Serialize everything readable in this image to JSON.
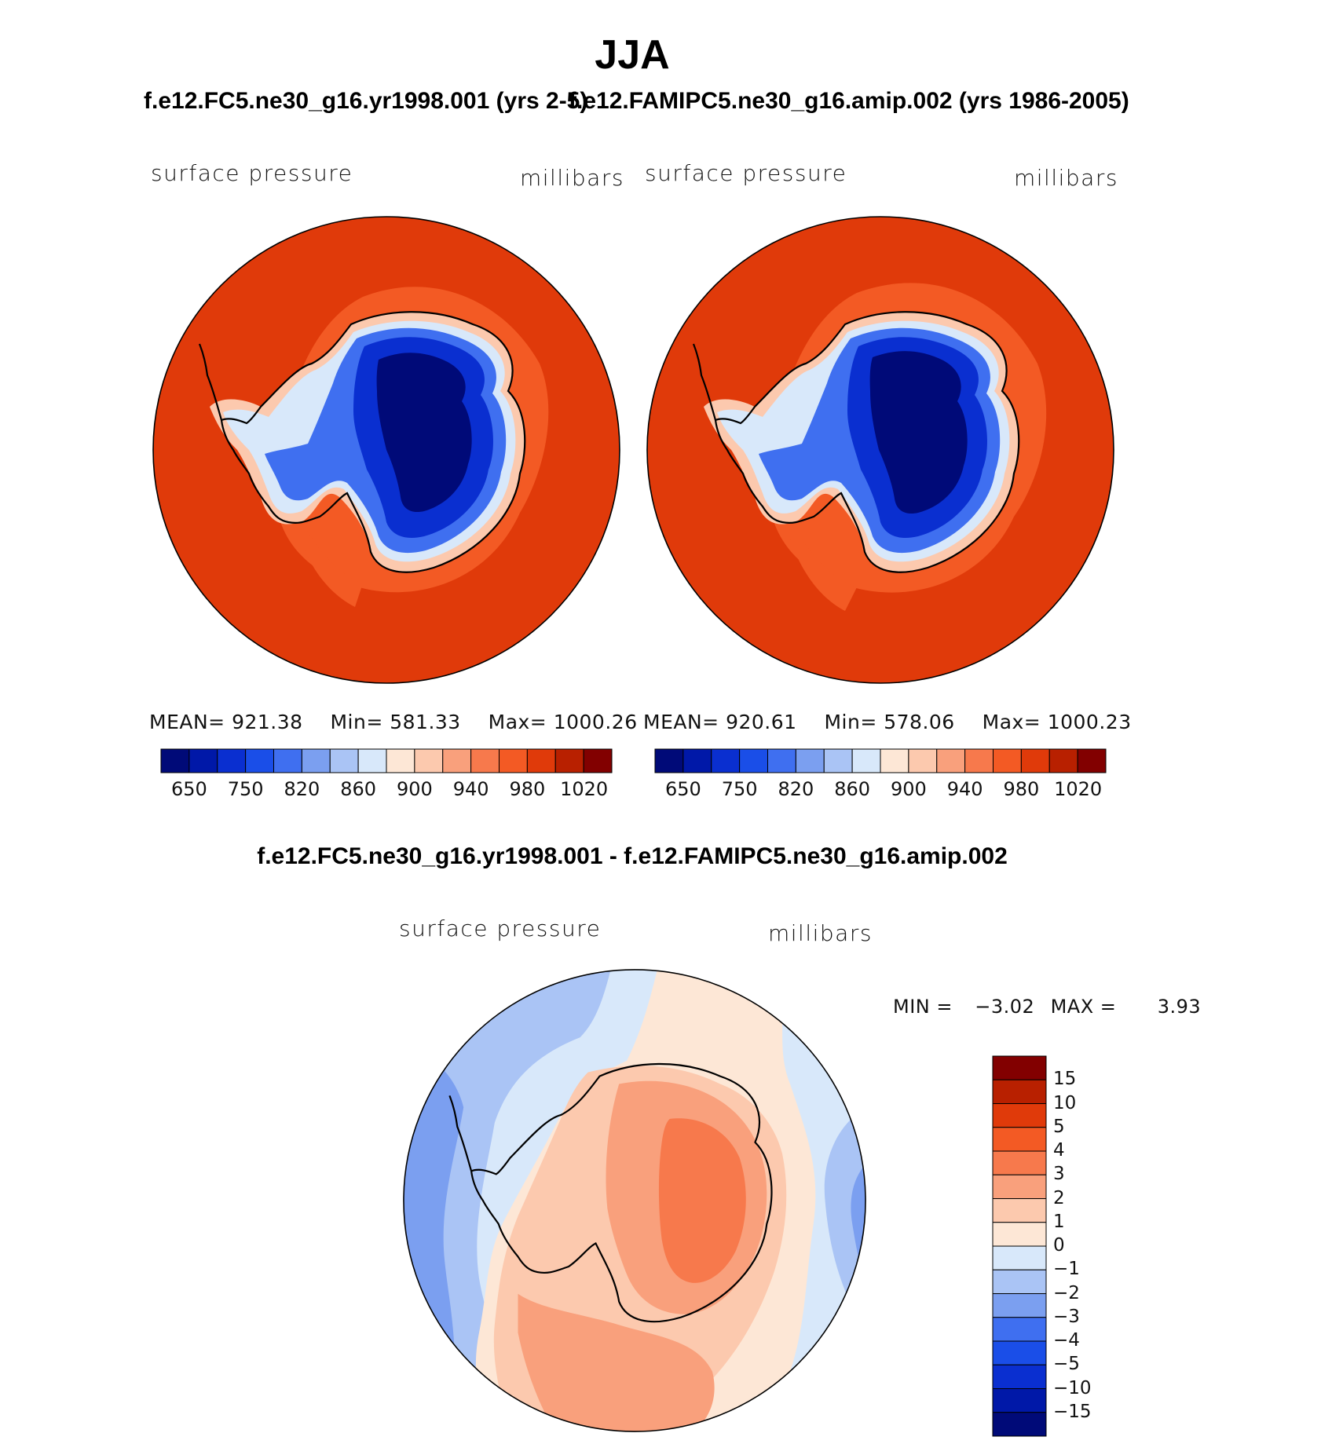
{
  "title": "JJA",
  "left_panel": {
    "title": "f.e12.FC5.ne30_g16.yr1998.001 (yrs 2-5)",
    "variable": "surface pressure",
    "units": "millibars",
    "stats": {
      "mean_label": "MEAN=",
      "mean": "921.38",
      "min_label": "Min=",
      "min": "581.33",
      "max_label": "Max=",
      "max": "1000.26"
    }
  },
  "right_panel": {
    "title": "f.e12.FAMIPC5.ne30_g16.amip.002 (yrs 1986-2005)",
    "variable": "surface pressure",
    "units": "millibars",
    "stats": {
      "mean_label": "MEAN=",
      "mean": "920.61",
      "min_label": "Min=",
      "min": "578.06",
      "max_label": "Max=",
      "max": "1000.23"
    }
  },
  "pressure_colorbar": {
    "colors": [
      "#000a78",
      "#0018a8",
      "#0a2fd0",
      "#1a4ee8",
      "#3f6ff0",
      "#7b9ff0",
      "#aac4f5",
      "#d8e8fa",
      "#fde7d6",
      "#fcc9ae",
      "#f9a07c",
      "#f7794c",
      "#f35a24",
      "#e03a0a",
      "#b82000",
      "#820000"
    ],
    "tick_labels": [
      "650",
      "750",
      "820",
      "860",
      "900",
      "940",
      "980",
      "1020"
    ]
  },
  "diff_panel": {
    "title": "f.e12.FC5.ne30_g16.yr1998.001 - f.e12.FAMIPC5.ne30_g16.amip.002",
    "variable": "surface pressure",
    "units": "millibars",
    "min_label": "MIN =",
    "min": "−3.02",
    "max_label": "MAX =",
    "max": "3.93"
  },
  "diff_colorbar": {
    "colors": [
      "#820000",
      "#b82000",
      "#e03a0a",
      "#f35a24",
      "#f7794c",
      "#f9a07c",
      "#fcc9ae",
      "#fde7d6",
      "#d8e8fa",
      "#aac4f5",
      "#7b9ff0",
      "#3f6ff0",
      "#1a4ee8",
      "#0a2fd0",
      "#0018a8",
      "#000a78"
    ],
    "tick_labels": [
      "15",
      "10",
      "5",
      "4",
      "3",
      "2",
      "1",
      "0",
      "−1",
      "−2",
      "−3",
      "−4",
      "−5",
      "−10",
      "−15"
    ]
  },
  "map_colors": {
    "ocean_base": "#e03a0a",
    "ocean_light": "#f35a24",
    "ice_edge": "#fcc9ae",
    "ice_pale": "#d8e8fa",
    "ice_mid": "#3f6ff0",
    "ice_high": "#0a2fd0",
    "ice_peak": "#000a78",
    "diff_bg": "#d8e8fa",
    "diff_blue": "#aac4f5",
    "diff_blue2": "#7b9ff0",
    "diff_cream": "#fde7d6",
    "diff_peach": "#fcc9ae",
    "diff_salmon": "#f9a07c",
    "diff_orange": "#f7794c"
  }
}
